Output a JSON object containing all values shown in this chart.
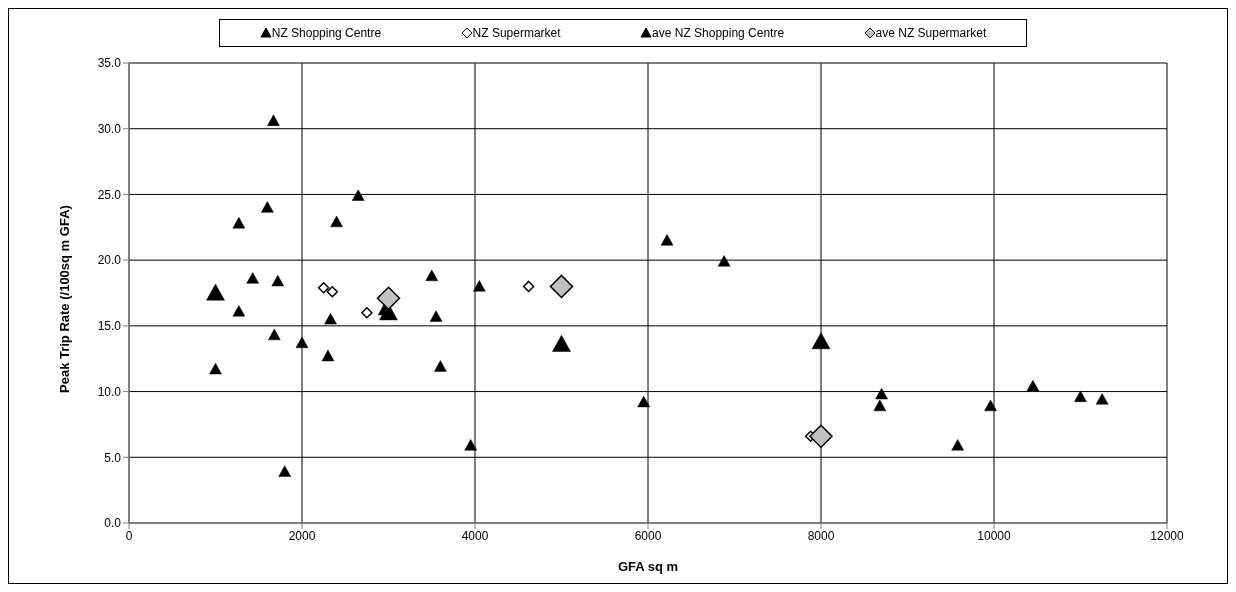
{
  "chart_data": {
    "type": "scatter",
    "xlabel": "GFA sq m",
    "ylabel": "Peak Trip Rate (/100sq m GFA)",
    "xlim": [
      0,
      12000
    ],
    "xticks": [
      0,
      2000,
      4000,
      6000,
      8000,
      10000,
      12000
    ],
    "ylim": [
      0,
      35
    ],
    "yticks": [
      {
        "value": 0,
        "label": "0.0"
      },
      {
        "value": 5,
        "label": "5.0"
      },
      {
        "value": 10,
        "label": "10.0"
      },
      {
        "value": 15,
        "label": "15.0"
      },
      {
        "value": 20,
        "label": "20.0"
      },
      {
        "value": 25,
        "label": "25.0"
      },
      {
        "value": 30,
        "label": "30.0"
      },
      {
        "value": 35,
        "label": "35.0"
      }
    ],
    "grid": true,
    "legend": "top",
    "series": [
      {
        "name": "NZ Shopping Centre",
        "color": "#000000",
        "marker": "triangle",
        "x": [
          1000,
          1270,
          1270,
          1430,
          1600,
          1670,
          1680,
          1720,
          1800,
          2000,
          2300,
          2330,
          2400,
          2650,
          2950,
          3500,
          3550,
          3600,
          3950,
          4050,
          5950,
          6220,
          6880,
          8700,
          8680,
          9580,
          9960,
          10450,
          11000,
          11250
        ],
        "values": [
          11.7,
          22.8,
          16.1,
          18.6,
          24,
          30.6,
          14.3,
          18.4,
          3.9,
          13.7,
          12.7,
          15.5,
          22.9,
          24.9,
          16.2,
          18.8,
          15.7,
          11.9,
          5.9,
          18,
          9.2,
          21.5,
          19.9,
          9.8,
          8.9,
          5.9,
          8.9,
          10.4,
          9.6,
          9.4
        ]
      },
      {
        "name": "NZ Supermarket",
        "color": "#ffffff",
        "marker": "diamond",
        "x": [
          2250,
          2350,
          2750,
          4620,
          7880
        ],
        "values": [
          17.9,
          17.6,
          16,
          18,
          6.6
        ]
      },
      {
        "name": "ave NZ Shopping Centre",
        "color": "#000000",
        "marker": "triangle",
        "x": [
          1000,
          3000,
          5000,
          8000
        ],
        "values": [
          17.5,
          16,
          13.6,
          13.8
        ]
      },
      {
        "name": "ave NZ Supermarket",
        "color": "#c0c0c0",
        "marker": "diamond",
        "x": [
          3000,
          5000,
          8000
        ],
        "values": [
          17.1,
          18,
          6.6
        ]
      }
    ]
  }
}
